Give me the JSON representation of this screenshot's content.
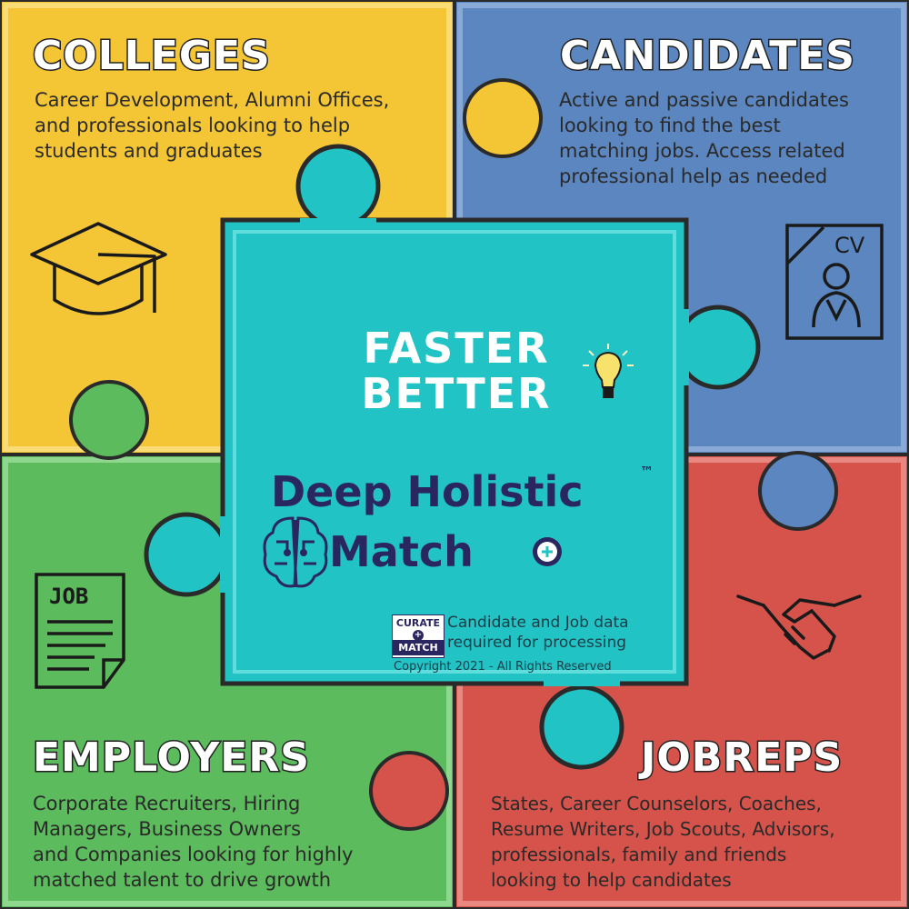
{
  "quadrants": {
    "colleges": {
      "title": "COLLEGES",
      "lines": [
        "Career Development, Alumni Offices,",
        "and professionals looking to help",
        "students and graduates"
      ],
      "icon": "graduation-cap-icon",
      "color": "#f4c534"
    },
    "candidates": {
      "title": "CANDIDATES",
      "lines": [
        "Active and passive candidates",
        "looking to find the best",
        "matching jobs. Access related",
        "professional help as needed"
      ],
      "icon": "cv-document-icon",
      "icon_text": "CV",
      "color": "#5b86bf"
    },
    "employers": {
      "title": "EMPLOYERS",
      "lines": [
        "Corporate Recruiters, Hiring",
        "Managers, Business Owners",
        "and Companies looking for highly",
        "matched talent to drive growth"
      ],
      "icon": "job-document-icon",
      "icon_text": "JOB",
      "color": "#5cbb5c"
    },
    "jobreps": {
      "title": "JOBREPS",
      "lines": [
        "States, Career Counselors, Coaches,",
        "Resume Writers, Job Scouts, Advisors,",
        "professionals, family and friends",
        "looking to help candidates"
      ],
      "icon": "handshake-icon",
      "color": "#d5534b"
    }
  },
  "center": {
    "line1": "FASTER",
    "line2": "BETTER",
    "brand_line1": "Deep Holistic",
    "trademark": "™",
    "brand_line2": "Match",
    "note_lines": [
      "Candidate and Job data",
      "required for processing"
    ],
    "copyright": "Copyright 2021 - All Rights Reserved",
    "logo_top": "CURATE",
    "logo_bottom": "MATCH",
    "color": "#22c3c4"
  }
}
